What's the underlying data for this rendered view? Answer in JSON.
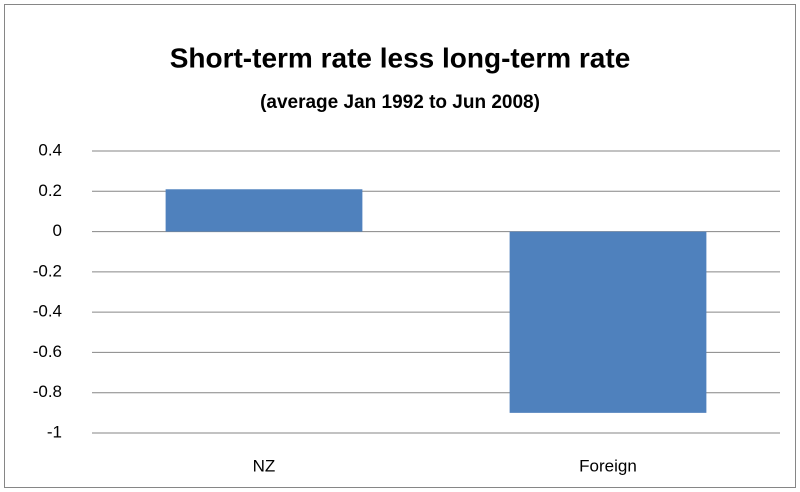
{
  "chart_data": {
    "type": "bar",
    "title": "Short-term rate less long-term rate",
    "subtitle": "(average Jan 1992 to Jun 2008)",
    "categories": [
      "NZ",
      "Foreign"
    ],
    "values": [
      0.21,
      -0.9
    ],
    "color": "#4f81bd",
    "ylim": [
      -1,
      0.4
    ],
    "yticks": [
      -1,
      -0.8,
      -0.6,
      -0.4,
      -0.2,
      0,
      0.2,
      0.4
    ],
    "grid": true
  }
}
